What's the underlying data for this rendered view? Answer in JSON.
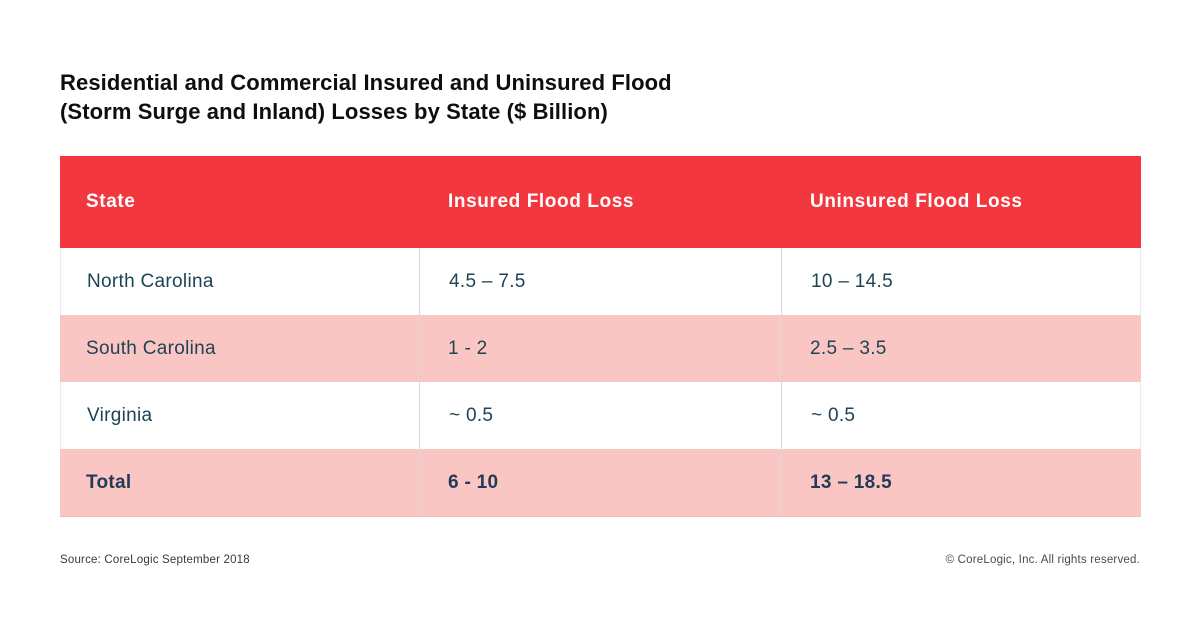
{
  "title": {
    "line1": "Residential and Commercial Insured and Uninsured Flood",
    "line2": "(Storm Surge and Inland) Losses by State ($ Billion)"
  },
  "table": {
    "headers": [
      "State",
      "Insured Flood Loss",
      "Uninsured Flood Loss"
    ],
    "rows": [
      {
        "state": "North Carolina",
        "insured": "4.5 – 7.5",
        "uninsured": "10 – 14.5"
      },
      {
        "state": "South Carolina",
        "insured": "1 - 2",
        "uninsured": "2.5 – 3.5"
      },
      {
        "state": "Virginia",
        "insured": "~ 0.5",
        "uninsured": "~ 0.5"
      },
      {
        "state": "Total",
        "insured": "6 - 10",
        "uninsured": "13 – 18.5"
      }
    ]
  },
  "footer": {
    "source": "Source: CoreLogic September 2018",
    "copyright": "© CoreLogic, Inc. All rights reserved."
  },
  "colors": {
    "header_red": "#f2383e",
    "row_pink": "#fac6c4",
    "body_text_teal": "#1d4354",
    "total_text_navy": "#223a55",
    "header_text": "#ffffff"
  },
  "chart_data": {
    "type": "table",
    "title": "Residential and Commercial Insured and Uninsured Flood (Storm Surge and Inland) Losses by State ($ Billion)",
    "units": "$ Billion",
    "columns": [
      "State",
      "Insured Flood Loss",
      "Uninsured Flood Loss"
    ],
    "rows": [
      [
        "North Carolina",
        "4.5 – 7.5",
        "10 – 14.5"
      ],
      [
        "South Carolina",
        "1 - 2",
        "2.5 – 3.5"
      ],
      [
        "Virginia",
        "~ 0.5",
        "~ 0.5"
      ],
      [
        "Total",
        "6 - 10",
        "13 – 18.5"
      ]
    ],
    "insured_range_billion": {
      "north_carolina": [
        4.5,
        7.5
      ],
      "south_carolina": [
        1,
        2
      ],
      "virginia": [
        0.5,
        0.5
      ],
      "total": [
        6,
        10
      ]
    },
    "uninsured_range_billion": {
      "north_carolina": [
        10,
        14.5
      ],
      "south_carolina": [
        2.5,
        3.5
      ],
      "virginia": [
        0.5,
        0.5
      ],
      "total": [
        13,
        18.5
      ]
    },
    "source": "CoreLogic September 2018"
  }
}
